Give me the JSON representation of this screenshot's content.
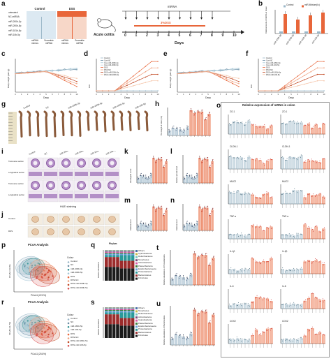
{
  "panel_letters": {
    "a": "a",
    "b": "b",
    "c": "c",
    "d": "d",
    "e": "e",
    "f": "f",
    "g": "g",
    "h": "h",
    "i": "i",
    "j": "j",
    "k": "k",
    "l": "l",
    "m": "m",
    "n": "n",
    "o": "o",
    "p": "p",
    "q": "q",
    "r": "r",
    "s": "s",
    "t": "t",
    "u": "u"
  },
  "panel_a": {
    "col_headers": [
      "Control",
      "DSS"
    ],
    "row_labels": [
      "untreated",
      "NC-miRNA",
      "miR-200b-3p",
      "miR-200b-5p",
      "miR-181b-5p",
      "miR-10b-5p"
    ],
    "bottom_labels": [
      "miRNA mimics",
      "Scramble miRNA",
      "miRNA mimics",
      "Scramble miRNA"
    ],
    "colors": {
      "control": "#dce9f2",
      "dss": "#f7d7c8",
      "dss_dark": "#e8663a"
    }
  },
  "timeline": {
    "title": "Acute colitis",
    "mirna_label": "miRNA",
    "dss_label": "3%DSS",
    "days": [
      "0",
      "1",
      "2",
      "3",
      "4",
      "5",
      "6",
      "7",
      "8",
      "9",
      "10"
    ],
    "axis_label": "Days"
  },
  "panel_b": {
    "legend": [
      "Control",
      "miR-Mixture(Ic)"
    ],
    "ylabel": "Relative levels of miRNA in tissue",
    "categories": [
      "miR-200b-3p",
      "miR-200b-5p",
      "miR-181b-5p",
      "miR-10b-5p"
    ],
    "colors": {
      "control": "#9db8c9",
      "treat": "#e8663a"
    }
  },
  "panel_c": {
    "ylabel": "Body weight gain (g)",
    "xlabel": "Days"
  },
  "panel_d": {
    "ylabel": "DAI",
    "xlabel": "Days",
    "legend": [
      "Control",
      "Con-NC",
      "Con-miR-200b-3p",
      "Con-miR-200b-5p",
      "DSS",
      "DSS-NC",
      "DSS-miR-200b-3p",
      "DSS-miR-200b-5p"
    ]
  },
  "panel_e": {
    "ylabel": "Body weight gain (g)",
    "xlabel": "Days"
  },
  "panel_f": {
    "ylabel": "DAI",
    "xlabel": "Days",
    "legend": [
      "Control",
      "Con-NC",
      "Con-miR-181b-5p",
      "Con-miR-10b-5p",
      "DSS",
      "DSS-NC",
      "DSS-miR-181b-5p",
      "DSS-miR-10b-5p"
    ]
  },
  "panel_g": {
    "labels": [
      "Control",
      "NC",
      "miR-200b-3p",
      "miR-200b-5p",
      "miR-181b-5p",
      "miR-10b-5p"
    ],
    "row_labels": [
      "Control",
      "DSS"
    ]
  },
  "panel_h": {
    "ylabel": "The length of colon (cm)"
  },
  "panel_i": {
    "cols": [
      "Control",
      "NC",
      "miR-200b-3p",
      "miR-200b-5p",
      "miR-181b-5p",
      "miR-10b-5p"
    ],
    "row_groups": [
      "NC Water",
      "DSS"
    ],
    "row_labels": [
      "Transverse section",
      "Longitudinal section",
      "Transverse section",
      "Longitudinal section"
    ],
    "caption": "H&E staining"
  },
  "panel_j": {
    "row_labels": [
      "Control",
      "DSS"
    ]
  },
  "panel_k": {
    "ylabel": "Histological score"
  },
  "panel_l": {
    "ylabel": "Relative protein level"
  },
  "panel_m": {
    "ylabel": "Relative level"
  },
  "panel_n": {
    "ylabel": "Relative level"
  },
  "panel_o": {
    "title": "Relative expression of mRNA in colon",
    "subpanels": [
      "ZO-1",
      "ZO-1",
      "CLDN-1",
      "CLDN-1",
      "MUC2",
      "MUC2",
      "TNF-α",
      "TNF-α",
      "IL-1β",
      "IL-1β",
      "IL-6",
      "IL-6",
      "COX2",
      "COX2"
    ]
  },
  "panel_p": {
    "title": "PCoA Analysis",
    "xlabel": "PCoA1 (22.5%)",
    "ylabel": "PCoA2 (14.3%)",
    "legend_title": "Colour",
    "legend": [
      "Control",
      "NC",
      "miR-200b-3p",
      "miR-200b-5p",
      "DSS",
      "DSS-NC",
      "DSS-miR-200b-3p",
      "DSS-miR-200b-5p"
    ]
  },
  "panel_q": {
    "title": "Phylum",
    "ylabel": "Relative abundance",
    "legend": [
      "Others",
      "Cyanobacteria",
      "Deferribacteres",
      "Tenericutes",
      "Actinobacteria",
      "Patescibacteria",
      "Epsilonbacteraeota",
      "Proteobacteria",
      "Bacteroidetes",
      "Firmicutes"
    ]
  },
  "panel_r": {
    "title": "PCoA Analysis",
    "xlabel": "PCoA1 (25.8%)",
    "ylabel": "PCoA2 (11.7%)",
    "legend_title": "Colour",
    "legend": [
      "Control",
      "NC",
      "miR-181b-5p",
      "miR-10b-5p",
      "DSS",
      "DSS-NC",
      "DSS-miR-181b-5p",
      "DSS-miR-10b-5p"
    ]
  },
  "panel_s": {
    "ylabel": "Relative abundance",
    "legend": [
      "Others",
      "Tenericutes",
      "Deferribacteres",
      "Actinobacteria",
      "Cyanobacteria",
      "Patescibacteria",
      "Epsilonbacteraeota",
      "Proteobacteria",
      "Bacteroidetes",
      "Firmicutes"
    ]
  },
  "panel_t": {
    "ylabel": "Relative abundance of Proteobacteria"
  },
  "panel_u": {
    "ylabel": "Relative abundance of Bacteroidetes"
  },
  "colors": {
    "control_blue": "#9bb7c8",
    "dss_orange": "#e8663a",
    "teal": "#2d8f8f",
    "bar_phylum": [
      "#4b6fa8",
      "#c9bb4b",
      "#7dc6c2",
      "#7b4a7c",
      "#d65fa8",
      "#3f7f3f",
      "#6aa0d9",
      "#2a9a9a",
      "#9c2c2c",
      "#1c1c1c"
    ]
  }
}
